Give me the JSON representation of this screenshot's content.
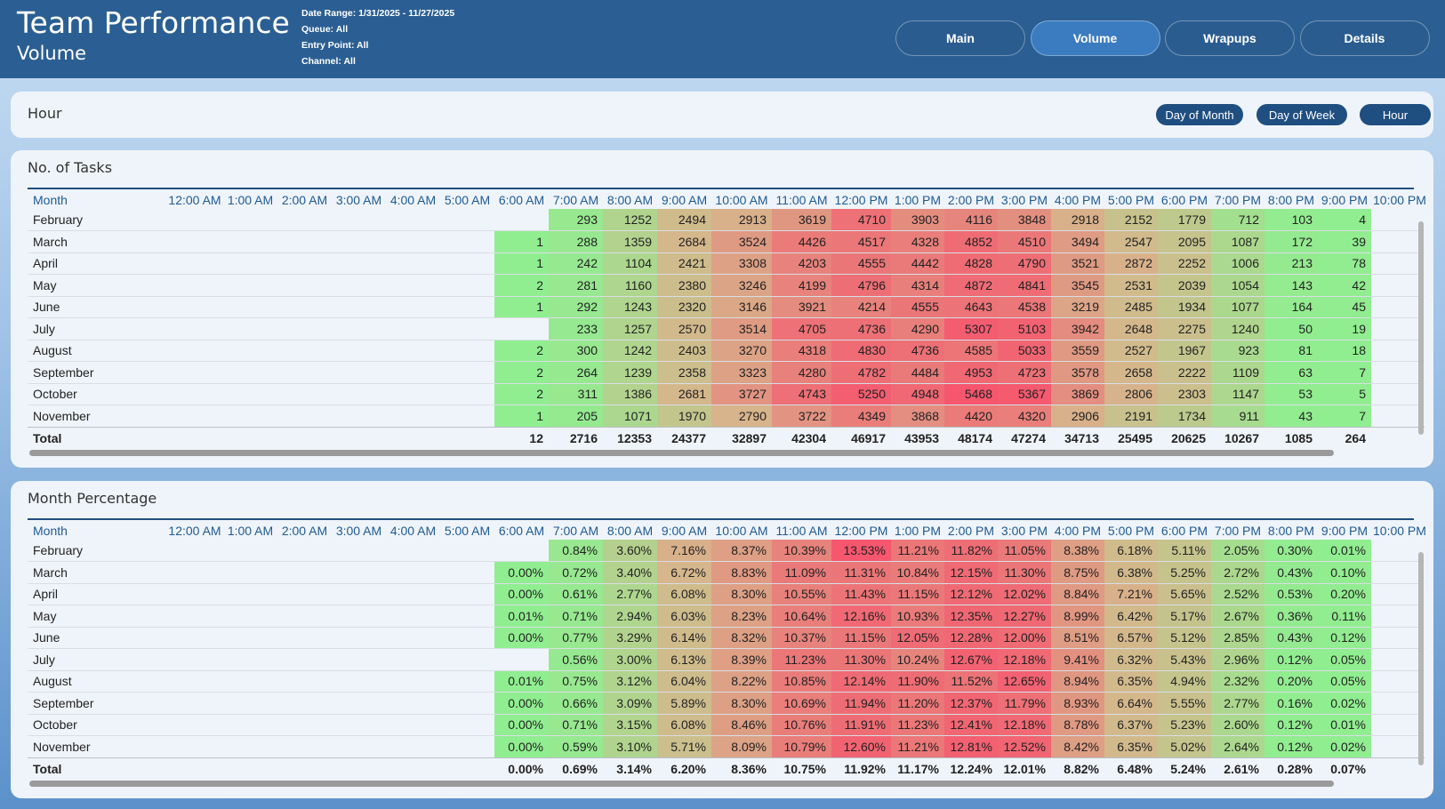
{
  "header": {
    "title": "Team Performance",
    "subtitle": "Volume",
    "filters": [
      "Date Range: 1/31/2025 - 11/27/2025",
      "Queue: All",
      "Entry Point: All",
      "Channel: All"
    ],
    "nav": [
      "Main",
      "Volume",
      "Wrapups",
      "Details"
    ],
    "nav_active": "Volume"
  },
  "section": {
    "title": "Hour",
    "buttons": [
      "Day of Month",
      "Day of Week",
      "Hour"
    ]
  },
  "tables": [
    {
      "title": "No. of Tasks",
      "row_header": "Month",
      "columns": [
        "12:00 AM",
        "1:00 AM",
        "2:00 AM",
        "3:00 AM",
        "4:00 AM",
        "5:00 AM",
        "6:00 AM",
        "7:00 AM",
        "8:00 AM",
        "9:00 AM",
        "10:00 AM",
        "11:00 AM",
        "12:00 PM",
        "1:00 PM",
        "2:00 PM",
        "3:00 PM",
        "4:00 PM",
        "5:00 PM",
        "6:00 PM",
        "7:00 PM",
        "8:00 PM",
        "9:00 PM",
        "10:00 PM"
      ],
      "rows": [
        {
          "label": "February",
          "cells": [
            null,
            null,
            null,
            null,
            null,
            null,
            null,
            293,
            1252,
            2494,
            2913,
            3619,
            4710,
            3903,
            4116,
            3848,
            2918,
            2152,
            1779,
            712,
            103,
            4,
            null
          ]
        },
        {
          "label": "March",
          "cells": [
            null,
            null,
            null,
            null,
            null,
            null,
            1,
            288,
            1359,
            2684,
            3524,
            4426,
            4517,
            4328,
            4852,
            4510,
            3494,
            2547,
            2095,
            1087,
            172,
            39,
            null
          ]
        },
        {
          "label": "April",
          "cells": [
            null,
            null,
            null,
            null,
            null,
            null,
            1,
            242,
            1104,
            2421,
            3308,
            4203,
            4555,
            4442,
            4828,
            4790,
            3521,
            2872,
            2252,
            1006,
            213,
            78,
            null
          ]
        },
        {
          "label": "May",
          "cells": [
            null,
            null,
            null,
            null,
            null,
            null,
            2,
            281,
            1160,
            2380,
            3246,
            4199,
            4796,
            4314,
            4872,
            4841,
            3545,
            2531,
            2039,
            1054,
            143,
            42,
            null
          ]
        },
        {
          "label": "June",
          "cells": [
            null,
            null,
            null,
            null,
            null,
            null,
            1,
            292,
            1243,
            2320,
            3146,
            3921,
            4214,
            4555,
            4643,
            4538,
            3219,
            2485,
            1934,
            1077,
            164,
            45,
            null
          ]
        },
        {
          "label": "July",
          "cells": [
            null,
            null,
            null,
            null,
            null,
            null,
            null,
            233,
            1257,
            2570,
            3514,
            4705,
            4736,
            4290,
            5307,
            5103,
            3942,
            2648,
            2275,
            1240,
            50,
            19,
            null
          ]
        },
        {
          "label": "August",
          "cells": [
            null,
            null,
            null,
            null,
            null,
            null,
            2,
            300,
            1242,
            2403,
            3270,
            4318,
            4830,
            4736,
            4585,
            5033,
            3559,
            2527,
            1967,
            923,
            81,
            18,
            null
          ]
        },
        {
          "label": "September",
          "cells": [
            null,
            null,
            null,
            null,
            null,
            null,
            2,
            264,
            1239,
            2358,
            3323,
            4280,
            4782,
            4484,
            4953,
            4723,
            3578,
            2658,
            2222,
            1109,
            63,
            7,
            null
          ]
        },
        {
          "label": "October",
          "cells": [
            null,
            null,
            null,
            null,
            null,
            null,
            2,
            311,
            1386,
            2681,
            3727,
            4743,
            5250,
            4948,
            5468,
            5367,
            3869,
            2806,
            2303,
            1147,
            53,
            5,
            null
          ]
        },
        {
          "label": "November",
          "cells": [
            null,
            null,
            null,
            null,
            null,
            null,
            1,
            205,
            1071,
            1970,
            2790,
            3722,
            4349,
            3868,
            4420,
            4320,
            2906,
            2191,
            1734,
            911,
            43,
            7,
            null
          ]
        }
      ],
      "total": {
        "label": "Total",
        "cells": [
          null,
          null,
          null,
          null,
          null,
          null,
          12,
          2716,
          12353,
          24377,
          32897,
          42304,
          46917,
          43953,
          48174,
          47274,
          34713,
          25495,
          20625,
          10267,
          1085,
          264,
          null
        ]
      }
    },
    {
      "title": "Month Percentage",
      "row_header": "Month",
      "columns": [
        "12:00 AM",
        "1:00 AM",
        "2:00 AM",
        "3:00 AM",
        "4:00 AM",
        "5:00 AM",
        "6:00 AM",
        "7:00 AM",
        "8:00 AM",
        "9:00 AM",
        "10:00 AM",
        "11:00 AM",
        "12:00 PM",
        "1:00 PM",
        "2:00 PM",
        "3:00 PM",
        "4:00 PM",
        "5:00 PM",
        "6:00 PM",
        "7:00 PM",
        "8:00 PM",
        "9:00 PM",
        "10:00 PM"
      ],
      "rows": [
        {
          "label": "February",
          "cells": [
            null,
            null,
            null,
            null,
            null,
            null,
            null,
            "0.84%",
            "3.60%",
            "7.16%",
            "8.37%",
            "10.39%",
            "13.53%",
            "11.21%",
            "11.82%",
            "11.05%",
            "8.38%",
            "6.18%",
            "5.11%",
            "2.05%",
            "0.30%",
            "0.01%",
            null
          ]
        },
        {
          "label": "March",
          "cells": [
            null,
            null,
            null,
            null,
            null,
            null,
            "0.00%",
            "0.72%",
            "3.40%",
            "6.72%",
            "8.83%",
            "11.09%",
            "11.31%",
            "10.84%",
            "12.15%",
            "11.30%",
            "8.75%",
            "6.38%",
            "5.25%",
            "2.72%",
            "0.43%",
            "0.10%",
            null
          ]
        },
        {
          "label": "April",
          "cells": [
            null,
            null,
            null,
            null,
            null,
            null,
            "0.00%",
            "0.61%",
            "2.77%",
            "6.08%",
            "8.30%",
            "10.55%",
            "11.43%",
            "11.15%",
            "12.12%",
            "12.02%",
            "8.84%",
            "7.21%",
            "5.65%",
            "2.52%",
            "0.53%",
            "0.20%",
            null
          ]
        },
        {
          "label": "May",
          "cells": [
            null,
            null,
            null,
            null,
            null,
            null,
            "0.01%",
            "0.71%",
            "2.94%",
            "6.03%",
            "8.23%",
            "10.64%",
            "12.16%",
            "10.93%",
            "12.35%",
            "12.27%",
            "8.99%",
            "6.42%",
            "5.17%",
            "2.67%",
            "0.36%",
            "0.11%",
            null
          ]
        },
        {
          "label": "June",
          "cells": [
            null,
            null,
            null,
            null,
            null,
            null,
            "0.00%",
            "0.77%",
            "3.29%",
            "6.14%",
            "8.32%",
            "10.37%",
            "11.15%",
            "12.05%",
            "12.28%",
            "12.00%",
            "8.51%",
            "6.57%",
            "5.12%",
            "2.85%",
            "0.43%",
            "0.12%",
            null
          ]
        },
        {
          "label": "July",
          "cells": [
            null,
            null,
            null,
            null,
            null,
            null,
            null,
            "0.56%",
            "3.00%",
            "6.13%",
            "8.39%",
            "11.23%",
            "11.30%",
            "10.24%",
            "12.67%",
            "12.18%",
            "9.41%",
            "6.32%",
            "5.43%",
            "2.96%",
            "0.12%",
            "0.05%",
            null
          ]
        },
        {
          "label": "August",
          "cells": [
            null,
            null,
            null,
            null,
            null,
            null,
            "0.01%",
            "0.75%",
            "3.12%",
            "6.04%",
            "8.22%",
            "10.85%",
            "12.14%",
            "11.90%",
            "11.52%",
            "12.65%",
            "8.94%",
            "6.35%",
            "4.94%",
            "2.32%",
            "0.20%",
            "0.05%",
            null
          ]
        },
        {
          "label": "September",
          "cells": [
            null,
            null,
            null,
            null,
            null,
            null,
            "0.00%",
            "0.66%",
            "3.09%",
            "5.89%",
            "8.30%",
            "10.69%",
            "11.94%",
            "11.20%",
            "12.37%",
            "11.79%",
            "8.93%",
            "6.64%",
            "5.55%",
            "2.77%",
            "0.16%",
            "0.02%",
            null
          ]
        },
        {
          "label": "October",
          "cells": [
            null,
            null,
            null,
            null,
            null,
            null,
            "0.00%",
            "0.71%",
            "3.15%",
            "6.08%",
            "8.46%",
            "10.76%",
            "11.91%",
            "11.23%",
            "12.41%",
            "12.18%",
            "8.78%",
            "6.37%",
            "5.23%",
            "2.60%",
            "0.12%",
            "0.01%",
            null
          ]
        },
        {
          "label": "November",
          "cells": [
            null,
            null,
            null,
            null,
            null,
            null,
            "0.00%",
            "0.59%",
            "3.10%",
            "5.71%",
            "8.09%",
            "10.79%",
            "12.60%",
            "11.21%",
            "12.81%",
            "12.52%",
            "8.42%",
            "6.35%",
            "5.02%",
            "2.64%",
            "0.12%",
            "0.02%",
            null
          ]
        }
      ],
      "total": {
        "label": "Total",
        "cells": [
          null,
          null,
          null,
          null,
          null,
          null,
          "0.00%",
          "0.69%",
          "3.14%",
          "6.20%",
          "8.36%",
          "10.75%",
          "11.92%",
          "11.17%",
          "12.24%",
          "12.01%",
          "8.82%",
          "6.48%",
          "5.24%",
          "2.61%",
          "0.28%",
          "0.07%",
          null
        ]
      }
    }
  ]
}
